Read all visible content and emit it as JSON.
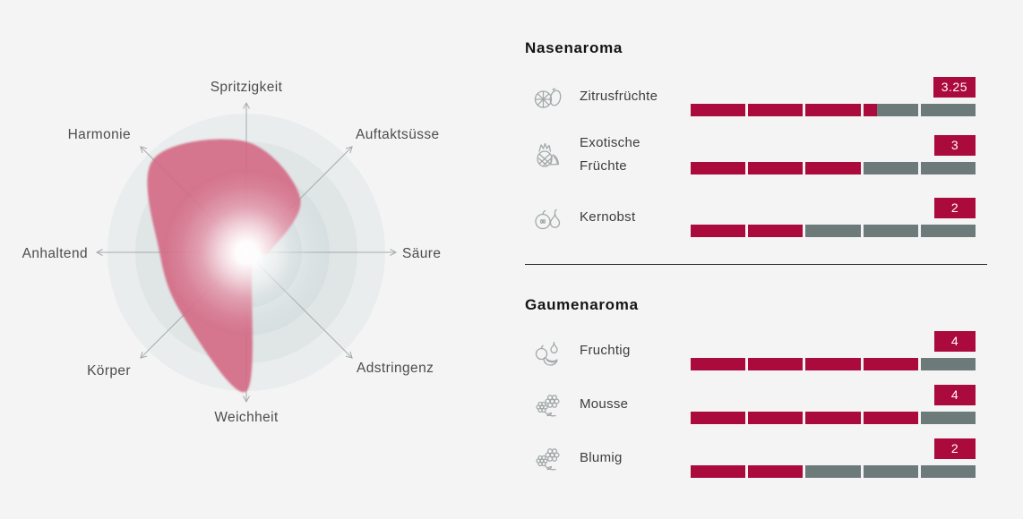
{
  "colors": {
    "accent": "#AB0A3D",
    "bar_gray": "#6D7A7A",
    "blob_pink": "#D46884",
    "background": "#F4F4F5",
    "axis_line": "#A5AAAA",
    "ring_fills": [
      "#E9EDED",
      "#E0E6E6",
      "#D7DFE0",
      "#CCD6D7",
      "#C6D1D2"
    ]
  },
  "chart_data": [
    {
      "type": "radar",
      "title": "",
      "categories": [
        "Spritzigkeit",
        "Auftaktsüsse",
        "Säure",
        "Adstringenz",
        "Weichheit",
        "Körper",
        "Anhaltend",
        "Harmonie"
      ],
      "values": [
        3.7,
        2.55,
        0.75,
        0.3,
        4.65,
        3.0,
        2.9,
        4.4
      ],
      "scale_min": 0,
      "scale_max": 5,
      "rings": 5,
      "legend": "none",
      "grid": "concentric-circles-with-arrow-axes"
    },
    {
      "type": "bar",
      "title": "Nasenaroma",
      "categories": [
        "Zitrusfrüchte",
        "Exotische Früchte",
        "Kernobst"
      ],
      "values": [
        3.25,
        3,
        2
      ],
      "value_labels": [
        "3.25",
        "3",
        "2"
      ],
      "max": 5,
      "segments_per_bar": 5
    },
    {
      "type": "bar",
      "title": "Gaumenaroma",
      "categories": [
        "Fruchtig",
        "Mousse",
        "Blumig"
      ],
      "values": [
        4,
        4,
        2
      ],
      "value_labels": [
        "4",
        "4",
        "2"
      ],
      "max": 5,
      "segments_per_bar": 5
    }
  ],
  "sections": [
    {
      "title": "Nasenaroma",
      "rows": [
        {
          "label": "Zitrusfrüchte",
          "value": 3.25,
          "badge": "3.25",
          "icon": "citrus-icon"
        },
        {
          "label": "Exotische Früchte",
          "value": 3,
          "badge": "3",
          "icon": "pineapple-melon-icon"
        },
        {
          "label": "Kernobst",
          "value": 2,
          "badge": "2",
          "icon": "apple-pear-icon"
        }
      ]
    },
    {
      "title": "Gaumenaroma",
      "rows": [
        {
          "label": "Fruchtig",
          "value": 4,
          "badge": "4",
          "icon": "mixed-fruits-icon"
        },
        {
          "label": "Mousse",
          "value": 4,
          "badge": "4",
          "icon": "mousse-flowers-icon"
        },
        {
          "label": "Blumig",
          "value": 2,
          "badge": "2",
          "icon": "flowers-icon"
        }
      ]
    }
  ]
}
